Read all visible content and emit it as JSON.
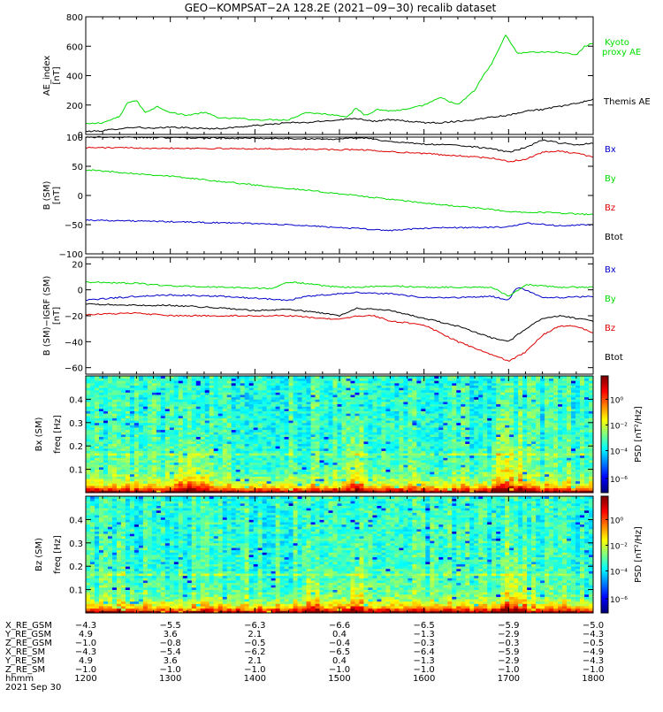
{
  "title": "GEO−KOMPSAT−2A 128.2E (2021−09−30) recalib dataset",
  "colors": {
    "black": "#000000",
    "green": "#00dd00",
    "red": "#dd0000",
    "blue": "#0000cc"
  },
  "chart_data": [
    {
      "type": "line",
      "ylabel": [
        "AE_index",
        "[nT]"
      ],
      "ylim": [
        0,
        800
      ],
      "yticks": [
        "0",
        "200",
        "400",
        "600",
        "800"
      ],
      "xlim": [
        1200,
        1800
      ],
      "series": [
        {
          "name": "Kyoto proxy AE",
          "label_lines": [
            "Kyoto",
            "proxy AE"
          ],
          "color": "green",
          "x": [
            1200,
            1220,
            1240,
            1250,
            1260,
            1270,
            1285,
            1300,
            1320,
            1340,
            1360,
            1380,
            1400,
            1420,
            1440,
            1460,
            1480,
            1500,
            1510,
            1520,
            1530,
            1545,
            1560,
            1580,
            1600,
            1620,
            1640,
            1660,
            1670,
            1680,
            1690,
            1697,
            1700,
            1710,
            1720,
            1740,
            1760,
            1780,
            1790,
            1800
          ],
          "values": [
            70,
            80,
            120,
            220,
            230,
            150,
            190,
            150,
            130,
            150,
            110,
            110,
            100,
            100,
            100,
            150,
            140,
            130,
            120,
            180,
            130,
            170,
            160,
            170,
            200,
            250,
            200,
            300,
            400,
            480,
            600,
            680,
            650,
            550,
            560,
            560,
            560,
            540,
            600,
            620
          ]
        },
        {
          "name": "Themis AE",
          "label_lines": [
            "Themis AE"
          ],
          "color": "black",
          "x": [
            1200,
            1220,
            1240,
            1260,
            1280,
            1300,
            1320,
            1340,
            1360,
            1380,
            1400,
            1420,
            1440,
            1460,
            1480,
            1500,
            1520,
            1540,
            1560,
            1580,
            1600,
            1620,
            1640,
            1660,
            1680,
            1700,
            1720,
            1740,
            1760,
            1780,
            1800
          ],
          "values": [
            20,
            25,
            40,
            50,
            40,
            50,
            45,
            40,
            40,
            50,
            60,
            70,
            80,
            80,
            90,
            100,
            110,
            90,
            100,
            90,
            80,
            80,
            90,
            100,
            120,
            130,
            160,
            170,
            190,
            210,
            240
          ]
        }
      ]
    },
    {
      "type": "line",
      "ylabel": [
        "B (SM)",
        "[nT]"
      ],
      "ylim": [
        -100,
        100
      ],
      "yticks": [
        "−100",
        "−50",
        "0",
        "50",
        "100"
      ],
      "xlim": [
        1200,
        1800
      ],
      "series": [
        {
          "name": "Bx",
          "color": "black",
          "x": [
            1200,
            1300,
            1400,
            1480,
            1500,
            1520,
            1540,
            1560,
            1600,
            1640,
            1680,
            1700,
            1720,
            1740,
            1760,
            1780,
            1800
          ],
          "values": [
            100,
            99,
            98,
            97,
            96,
            99,
            97,
            92,
            88,
            86,
            80,
            74,
            82,
            95,
            90,
            87,
            90
          ]
        },
        {
          "name": "By",
          "color": "green",
          "x": [
            1200,
            1300,
            1400,
            1500,
            1600,
            1680,
            1700,
            1720,
            1760,
            1800
          ],
          "values": [
            44,
            33,
            18,
            3,
            -13,
            -24,
            -28,
            -28,
            -30,
            -33
          ]
        },
        {
          "name": "Bz",
          "color": "red",
          "x": [
            1200,
            1300,
            1400,
            1480,
            1500,
            1520,
            1560,
            1600,
            1640,
            1680,
            1700,
            1720,
            1740,
            1760,
            1780,
            1800
          ],
          "values": [
            82,
            81,
            80,
            79,
            78,
            79,
            75,
            72,
            68,
            64,
            58,
            62,
            74,
            76,
            72,
            66
          ]
        },
        {
          "name": "Btot",
          "color": "blue",
          "x": [
            1200,
            1300,
            1400,
            1450,
            1500,
            1560,
            1580,
            1620,
            1660,
            1700,
            1720,
            1760,
            1800
          ],
          "values": [
            -42,
            -45,
            -48,
            -51,
            -55,
            -60,
            -58,
            -55,
            -55,
            -54,
            -47,
            -52,
            -50
          ]
        }
      ]
    },
    {
      "type": "line",
      "ylabel": [
        "B (SM)−IGRF (SM)",
        "[nT]"
      ],
      "ylim": [
        -65,
        25
      ],
      "yticks": [
        "−60",
        "−40",
        "−20",
        "0",
        "20"
      ],
      "xlim": [
        1200,
        1800
      ],
      "series": [
        {
          "name": "Bx",
          "color": "blue",
          "x": [
            1200,
            1260,
            1300,
            1360,
            1440,
            1460,
            1500,
            1520,
            1560,
            1600,
            1640,
            1680,
            1700,
            1710,
            1720,
            1740,
            1760,
            1800
          ],
          "values": [
            -8,
            -5,
            -4,
            -5,
            -8,
            -5,
            -3,
            -2,
            -3,
            -6,
            -6,
            -5,
            -8,
            2,
            0,
            -6,
            -6,
            -5
          ]
        },
        {
          "name": "By",
          "color": "green",
          "x": [
            1200,
            1260,
            1300,
            1360,
            1420,
            1440,
            1460,
            1480,
            1500,
            1520,
            1560,
            1600,
            1640,
            1680,
            1700,
            1720,
            1760,
            1800
          ],
          "values": [
            6,
            5,
            3,
            2,
            1,
            6,
            5,
            3,
            2,
            2,
            3,
            2,
            2,
            2,
            -5,
            4,
            2,
            2
          ]
        },
        {
          "name": "Bz",
          "color": "red",
          "x": [
            1200,
            1260,
            1300,
            1360,
            1400,
            1440,
            1480,
            1500,
            1520,
            1540,
            1560,
            1600,
            1640,
            1680,
            1700,
            1720,
            1740,
            1760,
            1780,
            1800
          ],
          "values": [
            -19,
            -18,
            -20,
            -20,
            -20,
            -20,
            -22,
            -23,
            -20,
            -20,
            -24,
            -27,
            -40,
            -50,
            -55,
            -48,
            -35,
            -28,
            -28,
            -33
          ]
        },
        {
          "name": "Btot",
          "color": "black",
          "x": [
            1200,
            1260,
            1300,
            1360,
            1400,
            1440,
            1480,
            1500,
            1520,
            1540,
            1560,
            1600,
            1640,
            1680,
            1700,
            1720,
            1740,
            1760,
            1780,
            1800
          ],
          "values": [
            -11,
            -12,
            -12,
            -14,
            -16,
            -15,
            -18,
            -20,
            -14,
            -15,
            -16,
            -22,
            -28,
            -37,
            -40,
            -30,
            -22,
            -20,
            -22,
            -24
          ]
        }
      ]
    },
    {
      "type": "heatmap",
      "ylabel": [
        "Bx (SM)",
        "freq [Hz]"
      ],
      "ylim": [
        0,
        0.5
      ],
      "yticks": [
        "0.1",
        "0.2",
        "0.3",
        "0.4"
      ],
      "xlim": [
        1200,
        1800
      ],
      "colorbar_label": "PSD [nT²/Hz]",
      "colorbar_ticks": [
        "10⁰",
        "10⁻²",
        "10⁻⁴",
        "10⁻⁶"
      ],
      "enhanced_intervals": [
        [
          1305,
          1345
        ],
        [
          1515,
          1530
        ],
        [
          1680,
          1720
        ]
      ]
    },
    {
      "type": "heatmap",
      "ylabel": [
        "Bz (SM)",
        "freq [Hz]"
      ],
      "ylim": [
        0,
        0.5
      ],
      "yticks": [
        "0.1",
        "0.2",
        "0.3",
        "0.4"
      ],
      "xlim": [
        1200,
        1800
      ],
      "colorbar_label": "PSD [nT²/Hz]",
      "colorbar_ticks": [
        "10⁰",
        "10⁻²",
        "10⁻⁴",
        "10⁻⁶"
      ],
      "enhanced_intervals": [
        [
          1460,
          1475
        ],
        [
          1515,
          1530
        ],
        [
          1690,
          1720
        ]
      ]
    }
  ],
  "ephemeris": {
    "rows": [
      {
        "label": "X_RE_GSM",
        "values": [
          "−4.3",
          "−5.5",
          "−6.3",
          "−6.6",
          "−6.5",
          "−5.9",
          "−5.0"
        ]
      },
      {
        "label": "Y_RE_GSM",
        "values": [
          "4.9",
          "3.6",
          "2.1",
          "0.4",
          "−1.3",
          "−2.9",
          "−4.3"
        ]
      },
      {
        "label": "Z_RE_GSM",
        "values": [
          "−1.0",
          "−0.8",
          "−0.5",
          "−0.4",
          "−0.3",
          "−0.3",
          "−0.5"
        ]
      },
      {
        "label": "X_RE_SM",
        "values": [
          "−4.3",
          "−5.4",
          "−6.2",
          "−6.5",
          "−6.4",
          "−5.9",
          "−4.9"
        ]
      },
      {
        "label": "Y_RE_SM",
        "values": [
          "4.9",
          "3.6",
          "2.1",
          "0.4",
          "−1.3",
          "−2.9",
          "−4.3"
        ]
      },
      {
        "label": "Z_RE_SM",
        "values": [
          "−1.0",
          "−1.0",
          "−1.0",
          "−1.0",
          "−1.0",
          "−1.0",
          "−1.0"
        ]
      },
      {
        "label": "hhmm",
        "values": [
          "1200",
          "1300",
          "1400",
          "1500",
          "1600",
          "1700",
          "1800"
        ]
      }
    ],
    "date": "2021 Sep 30"
  }
}
